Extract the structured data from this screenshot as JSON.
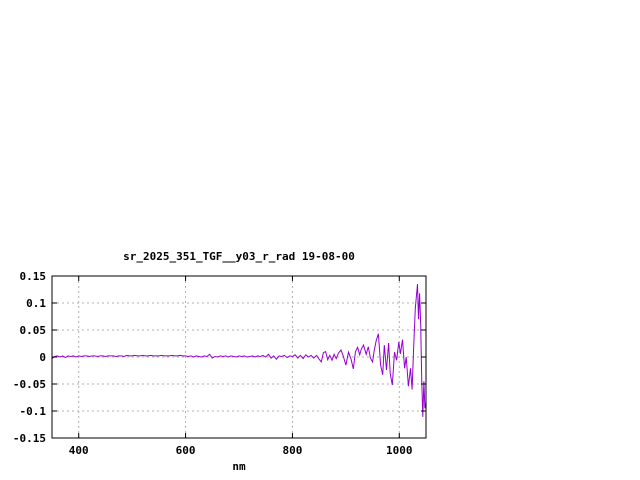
{
  "chart_data": {
    "type": "line",
    "title": "sr_2025_351_TGF__y03_r_rad 19-08-00",
    "xlabel": "nm",
    "ylabel": "",
    "xlim": [
      350,
      1050
    ],
    "ylim": [
      -0.15,
      0.15
    ],
    "grid": true,
    "legend_position": "none",
    "line_color": "#9400d3",
    "grid_color": "#b0b0b0",
    "axis_color": "#000000",
    "background": "#ffffff",
    "xticks": [
      {
        "v": 400,
        "label": "400"
      },
      {
        "v": 600,
        "label": "600"
      },
      {
        "v": 800,
        "label": "800"
      },
      {
        "v": 1000,
        "label": "1000"
      }
    ],
    "yticks": [
      {
        "v": -0.15,
        "label": "-0.15"
      },
      {
        "v": -0.1,
        "label": "-0.1"
      },
      {
        "v": -0.05,
        "label": "-0.05"
      },
      {
        "v": 0,
        "label": "0"
      },
      {
        "v": 0.05,
        "label": "0.05"
      },
      {
        "v": 0.1,
        "label": "0.1"
      },
      {
        "v": 0.15,
        "label": "0.15"
      }
    ],
    "series": [
      {
        "points": [
          [
            350,
            -0.003
          ],
          [
            355,
            0.001
          ],
          [
            360,
            0.002
          ],
          [
            365,
            0.0
          ],
          [
            370,
            0.002
          ],
          [
            375,
            -0.001
          ],
          [
            380,
            0.002
          ],
          [
            385,
            0.001
          ],
          [
            390,
            0.002
          ],
          [
            395,
            0.0
          ],
          [
            400,
            0.002
          ],
          [
            405,
            0.001
          ],
          [
            410,
            0.002
          ],
          [
            415,
            0.002
          ],
          [
            420,
            0.001
          ],
          [
            425,
            0.002
          ],
          [
            430,
            0.002
          ],
          [
            435,
            0.001
          ],
          [
            440,
            0.002
          ],
          [
            445,
            0.002
          ],
          [
            450,
            0.001
          ],
          [
            455,
            0.002
          ],
          [
            460,
            0.002
          ],
          [
            465,
            0.002
          ],
          [
            470,
            0.001
          ],
          [
            475,
            0.002
          ],
          [
            480,
            0.002
          ],
          [
            485,
            0.001
          ],
          [
            490,
            0.003
          ],
          [
            495,
            0.002
          ],
          [
            500,
            0.002
          ],
          [
            505,
            0.003
          ],
          [
            510,
            0.002
          ],
          [
            515,
            0.002
          ],
          [
            520,
            0.003
          ],
          [
            525,
            0.002
          ],
          [
            530,
            0.002
          ],
          [
            535,
            0.003
          ],
          [
            540,
            0.002
          ],
          [
            545,
            0.002
          ],
          [
            550,
            0.002
          ],
          [
            555,
            0.003
          ],
          [
            560,
            0.002
          ],
          [
            565,
            0.002
          ],
          [
            570,
            0.002
          ],
          [
            575,
            0.003
          ],
          [
            580,
            0.002
          ],
          [
            585,
            0.002
          ],
          [
            590,
            0.003
          ],
          [
            595,
            0.002
          ],
          [
            600,
            0.002
          ],
          [
            605,
            0.001
          ],
          [
            610,
            0.002
          ],
          [
            615,
            0.0
          ],
          [
            620,
            0.002
          ],
          [
            625,
            0.001
          ],
          [
            630,
            0.0
          ],
          [
            635,
            0.002
          ],
          [
            640,
            0.001
          ],
          [
            645,
            0.005
          ],
          [
            650,
            -0.002
          ],
          [
            655,
            0.001
          ],
          [
            660,
            0.0
          ],
          [
            665,
            0.002
          ],
          [
            670,
            0.001
          ],
          [
            675,
            0.002
          ],
          [
            680,
            0.0
          ],
          [
            685,
            0.002
          ],
          [
            690,
            0.001
          ],
          [
            695,
            0.0
          ],
          [
            700,
            0.002
          ],
          [
            705,
            0.001
          ],
          [
            710,
            0.002
          ],
          [
            715,
            0.0
          ],
          [
            720,
            0.001
          ],
          [
            725,
            0.002
          ],
          [
            730,
            0.0
          ],
          [
            735,
            0.002
          ],
          [
            740,
            0.001
          ],
          [
            745,
            0.003
          ],
          [
            750,
            0.0
          ],
          [
            755,
            0.005
          ],
          [
            760,
            -0.002
          ],
          [
            765,
            0.002
          ],
          [
            770,
            -0.004
          ],
          [
            775,
            0.002
          ],
          [
            780,
            0.001
          ],
          [
            785,
            0.003
          ],
          [
            790,
            -0.001
          ],
          [
            795,
            0.002
          ],
          [
            800,
            0.001
          ],
          [
            805,
            0.004
          ],
          [
            810,
            -0.002
          ],
          [
            815,
            0.003
          ],
          [
            820,
            -0.003
          ],
          [
            825,
            0.004
          ],
          [
            830,
            0.0
          ],
          [
            835,
            0.003
          ],
          [
            840,
            -0.002
          ],
          [
            845,
            0.003
          ],
          [
            850,
            -0.004
          ],
          [
            854,
            -0.009
          ],
          [
            858,
            0.008
          ],
          [
            862,
            0.01
          ],
          [
            866,
            -0.005
          ],
          [
            870,
            0.003
          ],
          [
            874,
            -0.006
          ],
          [
            878,
            0.005
          ],
          [
            882,
            -0.003
          ],
          [
            886,
            0.007
          ],
          [
            891,
            0.013
          ],
          [
            895,
            0.002
          ],
          [
            900,
            -0.015
          ],
          [
            905,
            0.009
          ],
          [
            910,
            -0.005
          ],
          [
            914,
            -0.022
          ],
          [
            918,
            0.01
          ],
          [
            922,
            0.018
          ],
          [
            926,
            0.004
          ],
          [
            929,
            0.015
          ],
          [
            933,
            0.022
          ],
          [
            938,
            0.005
          ],
          [
            942,
            0.019
          ],
          [
            946,
            -0.002
          ],
          [
            950,
            -0.009
          ],
          [
            953,
            0.012
          ],
          [
            957,
            0.031
          ],
          [
            961,
            0.043
          ],
          [
            965,
            -0.015
          ],
          [
            969,
            -0.033
          ],
          [
            972,
            0.022
          ],
          [
            976,
            -0.024
          ],
          [
            980,
            0.026
          ],
          [
            983,
            -0.03
          ],
          [
            987,
            -0.052
          ],
          [
            991,
            0.009
          ],
          [
            995,
            -0.006
          ],
          [
            999,
            0.028
          ],
          [
            1002,
            0.006
          ],
          [
            1006,
            0.032
          ],
          [
            1010,
            -0.021
          ],
          [
            1013,
            0.0
          ],
          [
            1017,
            -0.054
          ],
          [
            1021,
            -0.021
          ],
          [
            1024,
            -0.06
          ],
          [
            1027,
            0.02
          ],
          [
            1030,
            0.09
          ],
          [
            1034,
            0.135
          ],
          [
            1036,
            0.07
          ],
          [
            1038,
            0.118
          ],
          [
            1040,
            0.06
          ],
          [
            1042,
            -0.04
          ],
          [
            1044,
            -0.111
          ],
          [
            1046,
            -0.045
          ],
          [
            1048,
            -0.095
          ],
          [
            1050,
            -0.085
          ]
        ]
      }
    ]
  }
}
